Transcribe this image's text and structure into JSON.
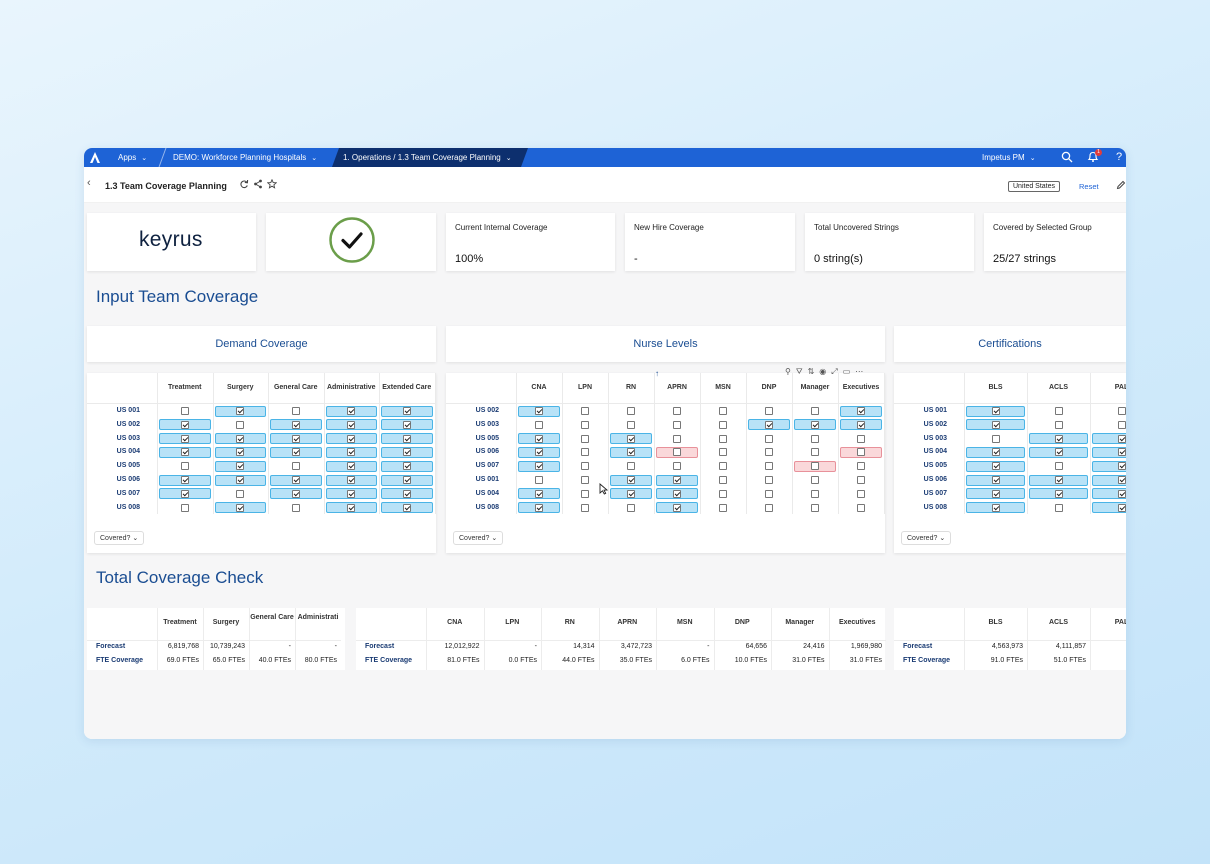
{
  "topbar": {
    "apps": "Apps",
    "model": "DEMO: Workforce Planning Hospitals",
    "page": "1. Operations / 1.3 Team Coverage Planning",
    "user": "Impetus PM",
    "badge": "1",
    "help": "?"
  },
  "titlebar": {
    "title": "1.3 Team Coverage Planning",
    "region": "United States",
    "reset": "Reset"
  },
  "logo_text": "keyrus",
  "kpis": [
    {
      "label": "Current Internal Coverage",
      "value": "100%"
    },
    {
      "label": "New Hire Coverage",
      "value": "-"
    },
    {
      "label": "Total Uncovered Strings",
      "value": "0 string(s)"
    },
    {
      "label": "Covered by Selected Group",
      "value": "25/27 strings"
    }
  ],
  "sections": {
    "input": "Input Team Coverage",
    "total": "Total Coverage Check"
  },
  "covered_btn": "Covered?",
  "colors": {
    "nav": "#1e63d6",
    "nav_active": "#0d2f6e",
    "accent": "#1a4d92",
    "cell_on": "#b8e2f7",
    "cell_border": "#4ab4e6",
    "cell_red": "#fad8da",
    "check": "#6b9e4a"
  },
  "demand": {
    "title": "Demand Coverage",
    "columns": [
      "Treatment",
      "Surgery",
      "General Care",
      "Administrative",
      "Extended Care"
    ],
    "rows": [
      "US 001",
      "US 002",
      "US 003",
      "US 004",
      "US 005",
      "US 006",
      "US 007",
      "US 008"
    ],
    "checked": [
      [
        0,
        1,
        0,
        1,
        1
      ],
      [
        1,
        0,
        1,
        1,
        1
      ],
      [
        1,
        1,
        1,
        1,
        1
      ],
      [
        1,
        1,
        1,
        1,
        1
      ],
      [
        0,
        1,
        0,
        1,
        1
      ],
      [
        1,
        1,
        1,
        1,
        1
      ],
      [
        1,
        0,
        1,
        1,
        1
      ],
      [
        0,
        1,
        0,
        1,
        1
      ]
    ],
    "highlight": [
      [
        0,
        1,
        0,
        1,
        1
      ],
      [
        1,
        0,
        1,
        1,
        1
      ],
      [
        1,
        1,
        1,
        1,
        1
      ],
      [
        1,
        1,
        1,
        1,
        1
      ],
      [
        0,
        1,
        0,
        1,
        1
      ],
      [
        1,
        1,
        1,
        1,
        1
      ],
      [
        1,
        0,
        1,
        1,
        1
      ],
      [
        0,
        1,
        0,
        1,
        1
      ]
    ]
  },
  "nurse": {
    "title": "Nurse Levels",
    "columns": [
      "CNA",
      "LPN",
      "RN",
      "APRN",
      "MSN",
      "DNP",
      "Manager",
      "Executives"
    ],
    "rows": [
      "US 002",
      "US 003",
      "US 005",
      "US 006",
      "US 007",
      "US 001",
      "US 004",
      "US 008"
    ],
    "checked": [
      [
        1,
        0,
        0,
        0,
        0,
        0,
        0,
        1
      ],
      [
        0,
        0,
        0,
        0,
        0,
        1,
        1,
        1
      ],
      [
        1,
        0,
        1,
        0,
        0,
        0,
        0,
        0
      ],
      [
        1,
        0,
        1,
        0,
        0,
        0,
        0,
        0
      ],
      [
        1,
        0,
        0,
        0,
        0,
        0,
        0,
        0
      ],
      [
        0,
        0,
        1,
        1,
        0,
        0,
        0,
        0
      ],
      [
        1,
        0,
        1,
        1,
        0,
        0,
        0,
        0
      ],
      [
        1,
        0,
        0,
        1,
        0,
        0,
        0,
        0
      ]
    ],
    "highlight": [
      [
        1,
        0,
        0,
        0,
        0,
        0,
        0,
        1
      ],
      [
        0,
        0,
        0,
        0,
        0,
        1,
        1,
        1
      ],
      [
        1,
        0,
        1,
        0,
        0,
        0,
        0,
        0
      ],
      [
        1,
        0,
        1,
        2,
        0,
        0,
        0,
        2
      ],
      [
        1,
        0,
        0,
        0,
        0,
        0,
        2,
        0
      ],
      [
        0,
        0,
        1,
        1,
        0,
        0,
        0,
        0
      ],
      [
        1,
        0,
        1,
        1,
        0,
        0,
        0,
        0
      ],
      [
        1,
        0,
        0,
        1,
        0,
        0,
        0,
        0
      ]
    ]
  },
  "cert": {
    "title": "Certifications",
    "columns": [
      "BLS",
      "ACLS",
      "PAL"
    ],
    "rows": [
      "US 001",
      "US 002",
      "US 003",
      "US 004",
      "US 005",
      "US 006",
      "US 007",
      "US 008"
    ],
    "checked": [
      [
        1,
        0,
        0
      ],
      [
        1,
        0,
        0
      ],
      [
        0,
        1,
        1
      ],
      [
        1,
        1,
        1
      ],
      [
        1,
        0,
        1
      ],
      [
        1,
        1,
        1
      ],
      [
        1,
        1,
        1
      ],
      [
        1,
        0,
        1
      ]
    ],
    "highlight": [
      [
        1,
        0,
        0
      ],
      [
        1,
        0,
        0
      ],
      [
        0,
        1,
        1
      ],
      [
        1,
        1,
        1
      ],
      [
        1,
        0,
        1
      ],
      [
        1,
        1,
        1
      ],
      [
        1,
        1,
        1
      ],
      [
        1,
        0,
        1
      ]
    ]
  },
  "totals": {
    "row_labels": [
      "Forecast",
      "FTE Coverage"
    ],
    "demand": {
      "columns": [
        "Treatment",
        "Surgery",
        "General Care",
        "Administrati"
      ],
      "forecast": [
        "6,819,768",
        "10,739,243",
        "-",
        "-"
      ],
      "fte": [
        "69.0 FTEs",
        "65.0 FTEs",
        "40.0 FTEs",
        "80.0 FTEs"
      ]
    },
    "nurse": {
      "columns": [
        "CNA",
        "LPN",
        "RN",
        "APRN",
        "MSN",
        "DNP",
        "Manager",
        "Executives"
      ],
      "forecast": [
        "12,012,922",
        "-",
        "14,314",
        "3,472,723",
        "-",
        "64,656",
        "24,416",
        "1,969,980"
      ],
      "fte": [
        "81.0 FTEs",
        "0.0 FTEs",
        "44.0 FTEs",
        "35.0 FTEs",
        "6.0 FTEs",
        "10.0 FTEs",
        "31.0 FTEs",
        "31.0 FTEs"
      ]
    },
    "cert": {
      "columns": [
        "BLS",
        "ACLS",
        "PAL"
      ],
      "forecast": [
        "4,563,973",
        "4,111,857",
        "4,8"
      ],
      "fte": [
        "91.0 FTEs",
        "51.0 FTEs",
        "44."
      ]
    }
  }
}
